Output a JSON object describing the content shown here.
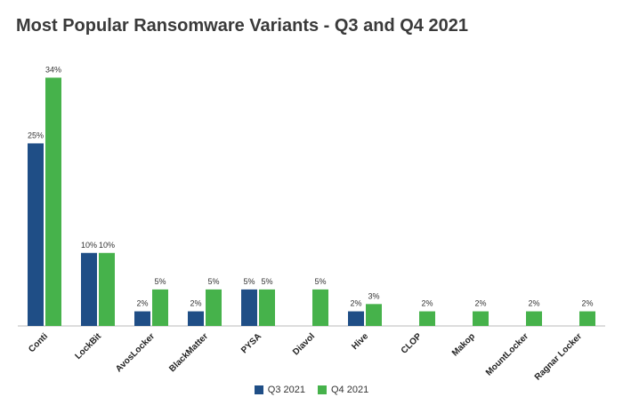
{
  "chart_data": {
    "type": "bar",
    "title": "Most Popular Ransomware Variants - Q3 and Q4 2021",
    "categories": [
      "Conti",
      "LockBit",
      "AvosLocker",
      "BlackMatter",
      "PYSA",
      "Diavol",
      "Hive",
      "CLOP",
      "Makop",
      "MountLocker",
      "Ragnar Locker"
    ],
    "series": [
      {
        "name": "Q3 2021",
        "color": "#1f4e86",
        "values": [
          25,
          10,
          2,
          2,
          5,
          null,
          2,
          null,
          null,
          null,
          null
        ],
        "labels": [
          "25%",
          "10%",
          "2%",
          "2%",
          "5%",
          "",
          "2%",
          "",
          "",
          "",
          ""
        ]
      },
      {
        "name": "Q4 2021",
        "color": "#46b24b",
        "values": [
          34,
          10,
          5,
          5,
          5,
          5,
          3,
          2,
          2,
          2,
          2
        ],
        "labels": [
          "34%",
          "10%",
          "5%",
          "5%",
          "5%",
          "5%",
          "3%",
          "2%",
          "2%",
          "2%",
          "2%"
        ]
      }
    ],
    "xlabel": "",
    "ylabel": "",
    "ylim": [
      0,
      36
    ],
    "grid": false,
    "legend": "bottom-center"
  }
}
